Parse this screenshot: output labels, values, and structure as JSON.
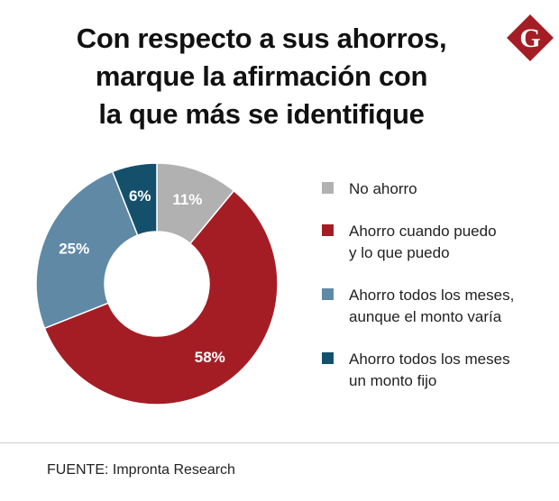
{
  "title_lines": [
    "Con respecto a sus ahorros,",
    "marque la afirmación con",
    "la que más se identifique"
  ],
  "logo": {
    "letter": "G",
    "color": "#a51d24"
  },
  "chart_data": {
    "type": "pie",
    "donut": true,
    "title": "Con respecto a sus ahorros, marque la afirmación con la que más se identifique",
    "slices": [
      {
        "label": "No ahorro",
        "label_lines": [
          "No ahorro"
        ],
        "value": 11,
        "display": "11%",
        "color": "#b1b1b1"
      },
      {
        "label": "Ahorro cuando puedo y lo que puedo",
        "label_lines": [
          "Ahorro cuando puedo",
          "y lo que puedo"
        ],
        "value": 58,
        "display": "58%",
        "color": "#a51d24"
      },
      {
        "label": "Ahorro todos los meses, aunque el monto varía",
        "label_lines": [
          "Ahorro todos los meses,",
          "aunque el monto varía"
        ],
        "value": 25,
        "display": "25%",
        "color": "#6089a6"
      },
      {
        "label": "Ahorro todos los meses un monto fijo",
        "label_lines": [
          "Ahorro todos los meses",
          "un monto fijo"
        ],
        "value": 6,
        "display": "6%",
        "color": "#14506c"
      }
    ],
    "legend_position": "right"
  },
  "source": "FUENTE: Impronta Research"
}
